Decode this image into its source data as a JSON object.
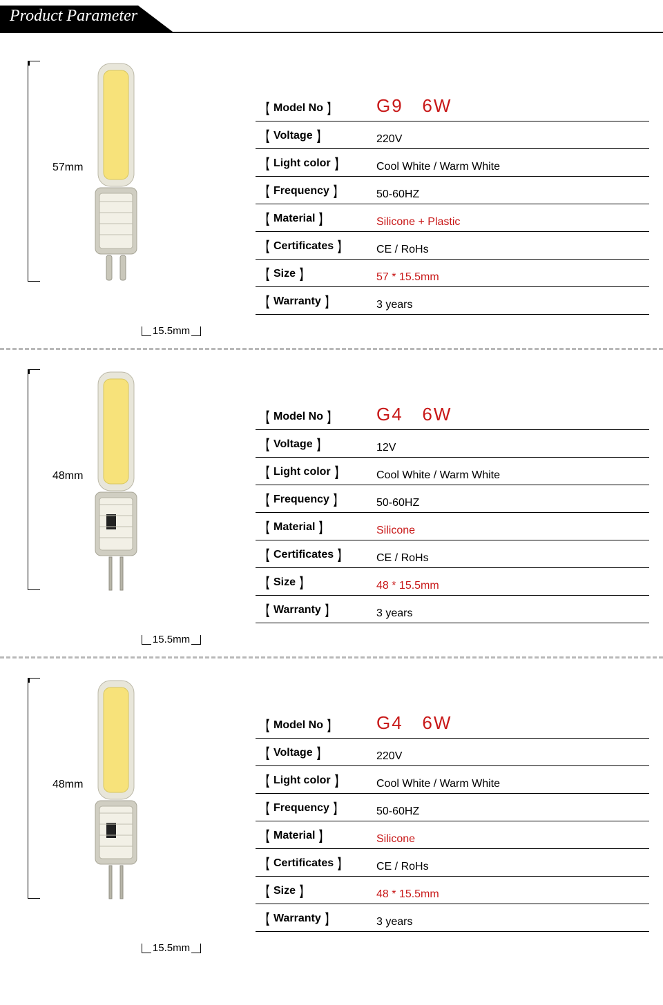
{
  "header": {
    "title": "Product Parameter"
  },
  "colors": {
    "text": "#000000",
    "accent_red": "#c81818",
    "divider": "#b8b8b8",
    "bulb_led": "#f7e27a",
    "bulb_body": "#e8e6da",
    "bulb_base": "#d0cec2",
    "background": "#ffffff"
  },
  "spec_labels": {
    "model": "Model No",
    "voltage": "Voltage",
    "light_color": "Light color",
    "frequency": "Frequency",
    "material": "Material",
    "certificates": "Certificates",
    "size": "Size",
    "warranty": "Warranty"
  },
  "products": [
    {
      "height_label": "57mm",
      "width_label": "15.5mm",
      "bulb_type": "g9",
      "specs": {
        "model": "G9   6W",
        "voltage": "220V",
        "light_color": "Cool White / Warm White",
        "frequency": "50-60HZ",
        "material": "Silicone + Plastic",
        "certificates": "CE / RoHs",
        "size": "57 * 15.5mm",
        "warranty": "3 years"
      },
      "red_fields": [
        "model",
        "material",
        "size"
      ]
    },
    {
      "height_label": "48mm",
      "width_label": "15.5mm",
      "bulb_type": "g4",
      "specs": {
        "model": "G4   6W",
        "voltage": "12V",
        "light_color": "Cool White / Warm White",
        "frequency": "50-60HZ",
        "material": "Silicone",
        "certificates": "CE / RoHs",
        "size": "48 * 15.5mm",
        "warranty": "3 years"
      },
      "red_fields": [
        "model",
        "material",
        "size"
      ]
    },
    {
      "height_label": "48mm",
      "width_label": "15.5mm",
      "bulb_type": "g4",
      "specs": {
        "model": "G4   6W",
        "voltage": "220V",
        "light_color": "Cool White / Warm White",
        "frequency": "50-60HZ",
        "material": "Silicone",
        "certificates": "CE / RoHs",
        "size": "48 * 15.5mm",
        "warranty": "3 years"
      },
      "red_fields": [
        "model",
        "material",
        "size"
      ]
    }
  ]
}
